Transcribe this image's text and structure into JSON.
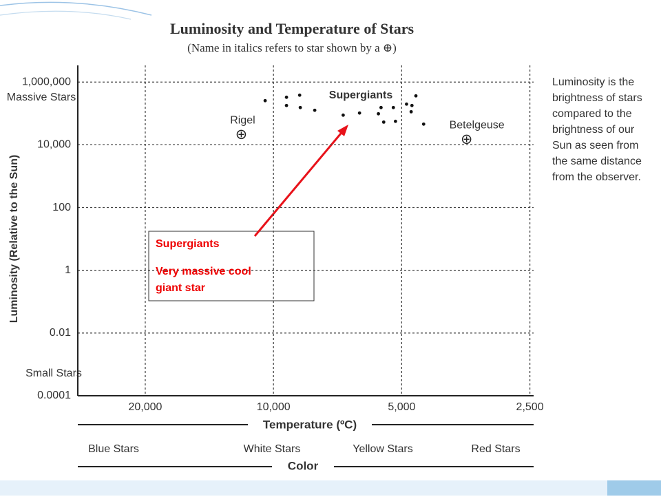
{
  "chart_data": {
    "type": "scatter",
    "title": "Luminosity and Temperature of Stars",
    "subtitle": "(Name in italics refers to star shown by a ⊕)",
    "x_label": "Temperature (ºC)",
    "y_label": "Luminosity (Relative to the Sun)",
    "xscale": "log",
    "yscale": "log",
    "grid": true,
    "xlim": [
      28800,
      2450
    ],
    "ylim": [
      0.0001,
      3400000
    ],
    "xticks": [
      {
        "value": 20000,
        "label": "20,000"
      },
      {
        "value": 10000,
        "label": "10,000"
      },
      {
        "value": 5000,
        "label": "5,000"
      },
      {
        "value": 2500,
        "label": "2,500"
      }
    ],
    "yticks": [
      {
        "value": 1000000,
        "label": "1,000,000"
      },
      {
        "value": 10000,
        "label": "10,000"
      },
      100,
      1,
      0.01,
      0.0001
    ],
    "annotations": [
      "Massive Stars",
      "Small Stars",
      "Supergiants"
    ],
    "color": "#111",
    "x": [
      10460,
      9320,
      9320,
      8680,
      8650,
      8000,
      6860,
      6280,
      5670,
      5590,
      5510,
      5230,
      5170,
      4870,
      4730,
      4750,
      4630,
      4440
    ],
    "y": [
      255000,
      328000,
      179000,
      382000,
      154000,
      126000,
      88000,
      103000,
      97500,
      154000,
      53000,
      154000,
      56000,
      198000,
      179000,
      113000,
      363000,
      45600
    ],
    "labeled_points": [
      {
        "label": "Rigel",
        "x": 11900,
        "y": 21400
      },
      {
        "label": "Betelgeuse",
        "x": 3520,
        "y": 15000
      }
    ],
    "color_bands": {
      "categories": [
        "Blue Stars",
        "White Stars",
        "Yellow Stars",
        "Red Stars"
      ],
      "label": "Color"
    }
  },
  "side_note": [
    "Luminosity is the",
    "brightness of stars",
    "compared to the",
    "brightness of our",
    "Sun as seen from",
    "the same distance",
    "from the observer."
  ],
  "callout": {
    "title": "Supergiants",
    "lines": [
      "Very massive cool",
      "giant star"
    ]
  }
}
